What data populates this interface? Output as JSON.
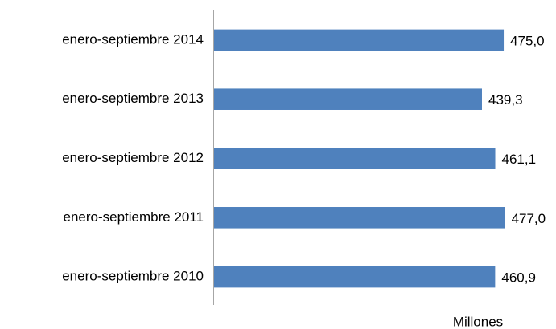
{
  "chart_data": {
    "type": "barh",
    "categories": [
      "enero-septiembre 2014",
      "enero-septiembre 2013",
      "enero-septiembre 2012",
      "enero-septiembre 2011",
      "enero-septiembre 2010"
    ],
    "values": [
      475.0,
      439.3,
      461.1,
      477.0,
      460.9
    ],
    "value_labels": [
      "475,0",
      "439,3",
      "461,1",
      "477,0",
      "460,9"
    ],
    "color": "#4f81bd",
    "xlabel": "Millones",
    "xlim": [
      0,
      500
    ]
  }
}
